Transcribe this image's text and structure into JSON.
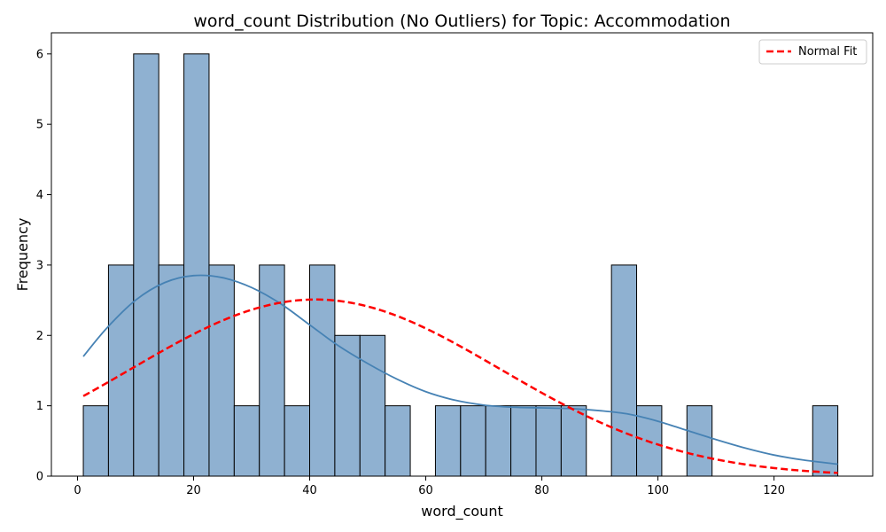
{
  "chart_data": {
    "type": "bar",
    "title": "word_count Distribution (No Outliers) for Topic: Accommodation",
    "xlabel": "word_count",
    "ylabel": "Frequency",
    "xlim": [
      -4.5,
      137
    ],
    "ylim": [
      0,
      6.3
    ],
    "xticks": [
      0,
      20,
      40,
      60,
      80,
      100,
      120
    ],
    "yticks": [
      0,
      1,
      2,
      3,
      4,
      5,
      6
    ],
    "bin_start": 1,
    "bin_width": 4.333,
    "counts": [
      1,
      3,
      6,
      3,
      6,
      3,
      1,
      3,
      1,
      3,
      2,
      2,
      1,
      0,
      1,
      1,
      1,
      1,
      1,
      1,
      0,
      3,
      1,
      0,
      1,
      0,
      0,
      0,
      0,
      1
    ],
    "bar_color": "#8fb1d1",
    "bar_edge_color": "#000000",
    "kde": {
      "color": "#4682b4",
      "x": [
        1,
        5,
        10,
        15,
        20,
        25,
        30,
        35,
        40,
        45,
        50,
        55,
        60,
        65,
        70,
        75,
        80,
        85,
        90,
        95,
        100,
        105,
        110,
        115,
        120,
        125,
        131
      ],
      "y": [
        1.7,
        2.1,
        2.5,
        2.75,
        2.85,
        2.82,
        2.68,
        2.45,
        2.15,
        1.85,
        1.6,
        1.38,
        1.2,
        1.08,
        1.01,
        0.98,
        0.97,
        0.96,
        0.93,
        0.88,
        0.78,
        0.65,
        0.52,
        0.4,
        0.3,
        0.23,
        0.17
      ]
    },
    "normal_fit": {
      "name": "Normal Fit",
      "color": "#ff0000",
      "mean": 41,
      "std": 31.8,
      "peak": 2.51,
      "x_range": [
        1,
        131
      ]
    },
    "legend_position": "top-right",
    "grid": false
  }
}
